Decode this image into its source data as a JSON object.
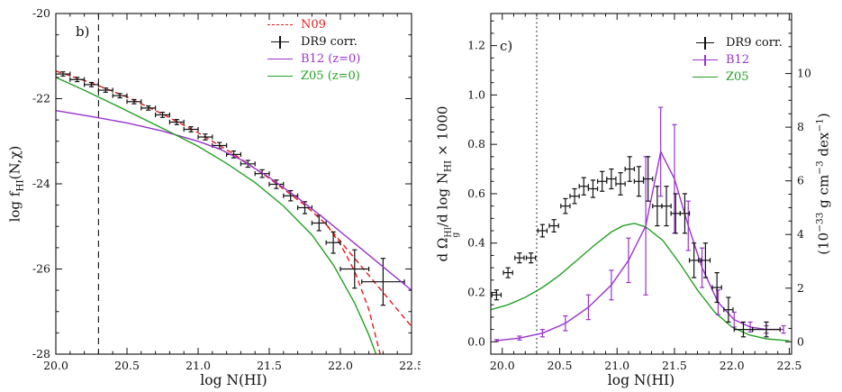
{
  "figure": {
    "background": "#ffffff"
  },
  "colors": {
    "red": "#e41a1a",
    "black": "#111111",
    "purple": "#9933cc",
    "green": "#24a124"
  },
  "panel_b": {
    "tag": "b)",
    "xlabel": "log N(HI)",
    "ylabel": {
      "p1": "log f",
      "sub": "HI",
      "p2": "(N,χ)"
    },
    "legend": [
      {
        "label": "N09",
        "color": "#e41a1a"
      },
      {
        "label": "DR9 corr.",
        "color": "#111111"
      },
      {
        "label": "B12 (z=0)",
        "color": "#9933cc"
      },
      {
        "label": "Z05 (z=0)",
        "color": "#24a124"
      }
    ]
  },
  "panel_c": {
    "tag": "c)",
    "xlabel": "log N(HI)",
    "ylabel_left": {
      "p1": "d Ω",
      "sup": "HI",
      "sub": "g",
      "p2": "/d log N",
      "sub2": "HI",
      "p3": " × 1000"
    },
    "ylabel_right": {
      "p1": "(10",
      "s1": "−33",
      "p2": " g cm",
      "s2": "−3",
      "p3": " dex",
      "s3": "−1",
      "p4": ")"
    },
    "legend": [
      {
        "label": "DR9 corr.",
        "color": "#111111"
      },
      {
        "label": "B12",
        "color": "#9933cc"
      },
      {
        "label": "Z05",
        "color": "#24a124"
      }
    ]
  },
  "chart_data": [
    {
      "type": "line",
      "panel": "b",
      "title": "",
      "xlabel": "log N(HI)",
      "ylabel": "log f_HI(N,chi)",
      "xlim": [
        20.0,
        22.5
      ],
      "ylim": [
        -28,
        -20
      ],
      "xticks": [
        20.0,
        20.5,
        21.0,
        21.5,
        22.0,
        22.5
      ],
      "yticks": [
        -20,
        -22,
        -24,
        -26,
        -28
      ],
      "grid": false,
      "legend_position": "top-right",
      "vline": {
        "x": 20.3,
        "style": "dashed"
      },
      "series": [
        {
          "name": "N09",
          "type": "line",
          "color": "#e41a1a",
          "dash": "6,4",
          "x": [
            20.0,
            20.25,
            20.5,
            20.75,
            21.0,
            21.25,
            21.5,
            21.75,
            21.9,
            22.0,
            22.1,
            22.2,
            22.28
          ],
          "y": [
            -21.35,
            -21.63,
            -21.96,
            -22.36,
            -22.8,
            -23.3,
            -23.87,
            -24.5,
            -24.95,
            -25.42,
            -26.05,
            -26.95,
            -28.0
          ]
        },
        {
          "name": "N09 power-law branch",
          "type": "line",
          "color": "#e41a1a",
          "dash": "6,4",
          "x": [
            21.9,
            22.1,
            22.3,
            22.5
          ],
          "y": [
            -24.95,
            -25.75,
            -26.55,
            -27.35
          ]
        },
        {
          "name": "DR9 corr.",
          "type": "scatter",
          "color": "#111111",
          "x": [
            20.05,
            20.15,
            20.25,
            20.35,
            20.45,
            20.55,
            20.65,
            20.75,
            20.85,
            20.95,
            21.05,
            21.15,
            21.25,
            21.35,
            21.45,
            21.55,
            21.65,
            21.75,
            21.85,
            21.95,
            22.1,
            22.3
          ],
          "y": [
            -21.42,
            -21.55,
            -21.67,
            -21.8,
            -21.93,
            -22.07,
            -22.22,
            -22.38,
            -22.55,
            -22.72,
            -22.9,
            -23.1,
            -23.31,
            -23.53,
            -23.76,
            -24.01,
            -24.28,
            -24.56,
            -24.92,
            -25.38,
            -26.0,
            -26.3
          ],
          "yerr": [
            0.05,
            0.05,
            0.05,
            0.05,
            0.05,
            0.05,
            0.05,
            0.06,
            0.06,
            0.06,
            0.07,
            0.07,
            0.08,
            0.08,
            0.09,
            0.1,
            0.12,
            0.14,
            0.18,
            0.25,
            0.45,
            0.55
          ],
          "xerr": [
            0.05,
            0.05,
            0.05,
            0.05,
            0.05,
            0.05,
            0.05,
            0.05,
            0.05,
            0.05,
            0.05,
            0.05,
            0.05,
            0.05,
            0.05,
            0.05,
            0.05,
            0.05,
            0.05,
            0.05,
            0.1,
            0.15
          ]
        },
        {
          "name": "B12 (z=0)",
          "type": "line",
          "color": "#9933cc",
          "x": [
            20.0,
            20.25,
            20.5,
            20.75,
            21.0,
            21.15,
            21.3,
            21.5,
            21.7,
            21.9,
            22.1,
            22.3,
            22.5
          ],
          "y": [
            -22.28,
            -22.42,
            -22.57,
            -22.76,
            -23.0,
            -23.18,
            -23.43,
            -23.85,
            -24.33,
            -24.85,
            -25.4,
            -25.95,
            -26.5
          ]
        },
        {
          "name": "Z05 (z=0)",
          "type": "line",
          "color": "#24a124",
          "x": [
            20.0,
            20.2,
            20.4,
            20.6,
            20.8,
            21.0,
            21.2,
            21.4,
            21.6,
            21.8,
            21.95,
            22.1,
            22.2,
            22.25
          ],
          "y": [
            -21.5,
            -21.8,
            -22.12,
            -22.45,
            -22.78,
            -23.12,
            -23.52,
            -23.97,
            -24.52,
            -25.2,
            -25.9,
            -26.8,
            -27.55,
            -28.0
          ]
        }
      ]
    },
    {
      "type": "line",
      "panel": "c",
      "title": "",
      "xlabel": "log N(HI)",
      "ylabel": "d Omega_g^HI / d log N_HI x 1000",
      "ylabel_right": "(10^-33 g cm^-3 dex^-1)",
      "xlim": [
        19.9,
        22.52
      ],
      "ylim": [
        -0.05,
        1.33
      ],
      "xticks": [
        20.0,
        20.5,
        21.0,
        21.5,
        22.0,
        22.5
      ],
      "yticks": [
        0.0,
        0.2,
        0.4,
        0.6,
        0.8,
        1.0,
        1.2
      ],
      "y2": {
        "factor": 9.2,
        "ticks": [
          0,
          2,
          4,
          6,
          8,
          10
        ],
        "minor": 0.5
      },
      "grid": false,
      "legend_position": "top-right",
      "vline": {
        "x": 20.3,
        "style": "dotted"
      },
      "series": [
        {
          "name": "Z05",
          "type": "line",
          "color": "#24a124",
          "x": [
            19.9,
            20.05,
            20.2,
            20.35,
            20.5,
            20.65,
            20.8,
            20.95,
            21.05,
            21.15,
            21.25,
            21.4,
            21.55,
            21.7,
            21.85,
            22.0,
            22.15,
            22.3,
            22.5
          ],
          "y": [
            0.13,
            0.15,
            0.18,
            0.22,
            0.27,
            0.33,
            0.39,
            0.445,
            0.47,
            0.48,
            0.465,
            0.41,
            0.315,
            0.21,
            0.12,
            0.06,
            0.028,
            0.012,
            0.004
          ]
        },
        {
          "name": "B12",
          "type": "line+err",
          "color": "#9933cc",
          "x": [
            19.95,
            20.15,
            20.35,
            20.55,
            20.75,
            20.95,
            21.1,
            21.25,
            21.38,
            21.5,
            21.62,
            21.74,
            21.88,
            22.02,
            22.16,
            22.3,
            22.45
          ],
          "y": [
            0.005,
            0.015,
            0.035,
            0.075,
            0.14,
            0.23,
            0.33,
            0.47,
            0.77,
            0.66,
            0.47,
            0.3,
            0.16,
            0.09,
            0.06,
            0.05,
            0.05
          ],
          "yerr": [
            0.004,
            0.008,
            0.015,
            0.03,
            0.05,
            0.06,
            0.09,
            0.28,
            0.18,
            0.22,
            0.1,
            0.08,
            0.05,
            0.03,
            0.02,
            0.015,
            0.015
          ]
        },
        {
          "name": "DR9 corr.",
          "type": "scatter",
          "color": "#111111",
          "x": [
            19.95,
            20.05,
            20.15,
            20.25,
            20.35,
            20.45,
            20.55,
            20.63,
            20.71,
            20.79,
            20.87,
            20.95,
            21.03,
            21.11,
            21.19,
            21.27,
            21.35,
            21.43,
            21.51,
            21.59,
            21.67,
            21.77,
            21.87,
            21.97,
            22.1,
            22.3
          ],
          "y": [
            0.19,
            0.28,
            0.34,
            0.34,
            0.45,
            0.47,
            0.55,
            0.59,
            0.63,
            0.62,
            0.65,
            0.66,
            0.64,
            0.7,
            0.65,
            0.66,
            0.55,
            0.55,
            0.52,
            0.52,
            0.33,
            0.33,
            0.22,
            0.13,
            0.05,
            0.05
          ],
          "yerr": [
            0.02,
            0.02,
            0.02,
            0.02,
            0.025,
            0.025,
            0.03,
            0.03,
            0.035,
            0.035,
            0.04,
            0.04,
            0.045,
            0.05,
            0.06,
            0.09,
            0.08,
            0.08,
            0.08,
            0.08,
            0.07,
            0.07,
            0.06,
            0.05,
            0.03,
            0.03
          ],
          "xerr": [
            0.04,
            0.04,
            0.04,
            0.04,
            0.04,
            0.04,
            0.04,
            0.04,
            0.04,
            0.04,
            0.04,
            0.04,
            0.04,
            0.04,
            0.04,
            0.04,
            0.04,
            0.04,
            0.04,
            0.04,
            0.04,
            0.04,
            0.04,
            0.04,
            0.08,
            0.12
          ]
        }
      ]
    }
  ]
}
